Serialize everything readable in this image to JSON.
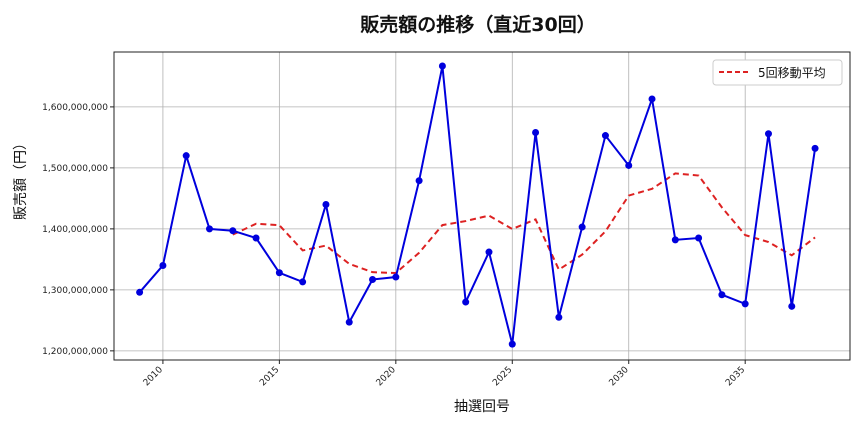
{
  "chart_data": {
    "type": "line",
    "title": "販売額の推移（直近30回）",
    "xlabel": "抽選回号",
    "ylabel": "販売額（円）",
    "x": [
      2009,
      2010,
      2011,
      2012,
      2013,
      2014,
      2015,
      2016,
      2017,
      2018,
      2019,
      2020,
      2021,
      2022,
      2023,
      2024,
      2025,
      2026,
      2027,
      2028,
      2029,
      2030,
      2031,
      2032,
      2033,
      2034,
      2035,
      2036,
      2037,
      2038
    ],
    "series": [
      {
        "name": "販売額",
        "color": "#0000dd",
        "style": "solid-markers",
        "values": [
          1296000000,
          1340000000,
          1520000000,
          1400000000,
          1397000000,
          1385000000,
          1328000000,
          1313000000,
          1440000000,
          1247000000,
          1317000000,
          1321000000,
          1479000000,
          1667000000,
          1280000000,
          1362000000,
          1211000000,
          1558000000,
          1255000000,
          1403000000,
          1553000000,
          1504000000,
          1613000000,
          1382000000,
          1385000000,
          1292000000,
          1277000000,
          1556000000,
          1273000000,
          1532000000
        ]
      },
      {
        "name": "5回移動平均",
        "color": "#dd2222",
        "style": "dashed",
        "values": [
          null,
          null,
          null,
          null,
          1390600000,
          1408400000,
          1406000000,
          1364600000,
          1372600000,
          1342600000,
          1329000000,
          1327600000,
          1360800000,
          1406200000,
          1412800000,
          1421800000,
          1399800000,
          1415600000,
          1333200000,
          1357800000,
          1396000000,
          1454600000,
          1465600000,
          1491000000,
          1487400000,
          1435200000,
          1389800000,
          1378400000,
          1356600000,
          1386000000
        ]
      }
    ],
    "xticks": [
      2010,
      2015,
      2020,
      2025,
      2030,
      2035
    ],
    "yticks": [
      1200000000,
      1300000000,
      1400000000,
      1500000000,
      1600000000
    ],
    "ytick_labels": [
      "1,200,000,000",
      "1,300,000,000",
      "1,400,000,000",
      "1,500,000,000",
      "1,600,000,000"
    ],
    "xlim": [
      2007.9,
      2039.5
    ],
    "ylim": [
      1185000000,
      1690000000
    ],
    "grid": true,
    "legend_position": "upper right"
  },
  "legend": {
    "ma_label": "5回移動平均"
  }
}
